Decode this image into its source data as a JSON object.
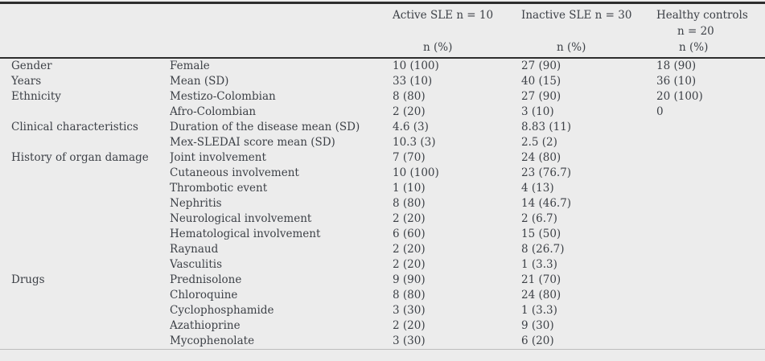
{
  "page": {
    "background_color": "#ececec",
    "rule_dark_color": "#2d2d2d",
    "rule_light_color": "#bdbdbd",
    "text_color": "#3d4147"
  },
  "table": {
    "columns": {
      "active": {
        "title": "Active SLE n = 10",
        "sub": "n (%)"
      },
      "inactive": {
        "title": "Inactive SLE n = 30",
        "sub": "n (%)"
      },
      "healthy": {
        "title": "Healthy controls",
        "line2": "n = 20",
        "sub": "n (%)"
      }
    },
    "rows": [
      {
        "category": "Gender",
        "label": "Female",
        "active": "10 (100)",
        "inactive": "27 (90)",
        "healthy": "18 (90)"
      },
      {
        "category": "Years",
        "label": "Mean (SD)",
        "active": "33 (10)",
        "inactive": "40 (15)",
        "healthy": "36 (10)"
      },
      {
        "category": "Ethnicity",
        "label": "Mestizo-Colombian",
        "active": "8 (80)",
        "inactive": "27 (90)",
        "healthy": "20 (100)"
      },
      {
        "category": "",
        "label": "Afro-Colombian",
        "active": "2 (20)",
        "inactive": "3 (10)",
        "healthy": "0"
      },
      {
        "category": "Clinical characteristics",
        "label": "Duration of the disease mean (SD)",
        "active": "4.6 (3)",
        "inactive": "8.83 (11)",
        "healthy": ""
      },
      {
        "category": "",
        "label": "Mex-SLEDAI score mean (SD)",
        "active": "10.3 (3)",
        "inactive": "2.5 (2)",
        "healthy": ""
      },
      {
        "category": "History of organ damage",
        "label": "Joint involvement",
        "active": "7 (70)",
        "inactive": "24 (80)",
        "healthy": ""
      },
      {
        "category": "",
        "label": "Cutaneous involvement",
        "active": "10 (100)",
        "inactive": "23 (76.7)",
        "healthy": ""
      },
      {
        "category": "",
        "label": "Thrombotic event",
        "active": "1 (10)",
        "inactive": "4 (13)",
        "healthy": ""
      },
      {
        "category": "",
        "label": "Nephritis",
        "active": "8 (80)",
        "inactive": "14 (46.7)",
        "healthy": ""
      },
      {
        "category": "",
        "label": "Neurological involvement",
        "active": "2 (20)",
        "inactive": "2 (6.7)",
        "healthy": ""
      },
      {
        "category": "",
        "label": "Hematological involvement",
        "active": "6 (60)",
        "inactive": "15 (50)",
        "healthy": ""
      },
      {
        "category": "",
        "label": "Raynaud",
        "active": "2 (20)",
        "inactive": "8 (26.7)",
        "healthy": ""
      },
      {
        "category": "",
        "label": "Vasculitis",
        "active": "2 (20)",
        "inactive": "1 (3.3)",
        "healthy": ""
      },
      {
        "category": "Drugs",
        "label": "Prednisolone",
        "active": "9 (90)",
        "inactive": "21 (70)",
        "healthy": ""
      },
      {
        "category": "",
        "label": "Chloroquine",
        "active": "8 (80)",
        "inactive": "24 (80)",
        "healthy": ""
      },
      {
        "category": "",
        "label": "Cyclophosphamide",
        "active": "3 (30)",
        "inactive": "1 (3.3)",
        "healthy": ""
      },
      {
        "category": "",
        "label": "Azathioprine",
        "active": "2 (20)",
        "inactive": "9 (30)",
        "healthy": ""
      },
      {
        "category": "",
        "label": "Mycophenolate",
        "active": "3 (30)",
        "inactive": "6 (20)",
        "healthy": ""
      }
    ]
  }
}
